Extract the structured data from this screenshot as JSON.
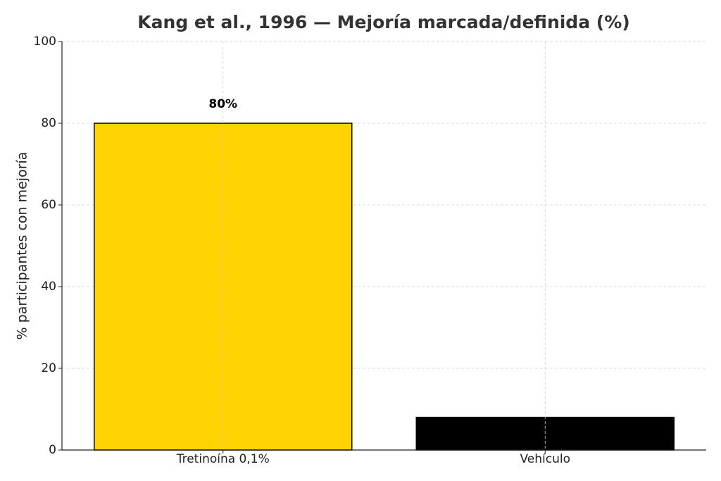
{
  "chart_data": {
    "type": "bar",
    "title": "Kang et al., 1996 — Mejoría marcada/definida (%)",
    "ylabel": "% participantes con mejoría",
    "categories": [
      "Tretinoína 0,1%",
      "Vehículo"
    ],
    "values": [
      80,
      8
    ],
    "value_labels": [
      "80%",
      null
    ],
    "colors": [
      "#ffd300",
      "#000000"
    ],
    "ylim": [
      0,
      100
    ],
    "yticks": [
      0,
      20,
      40,
      60,
      80,
      100
    ],
    "grid": true
  }
}
